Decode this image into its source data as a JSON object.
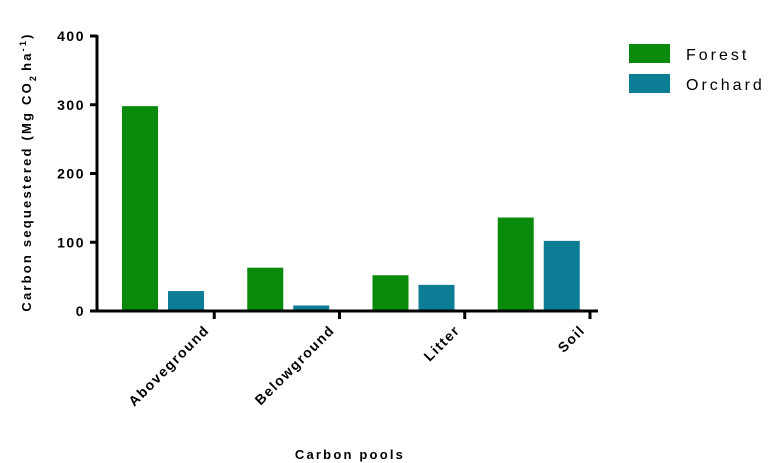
{
  "chart_data": {
    "type": "bar",
    "categories": [
      "Aboveground",
      "Belowground",
      "Litter",
      "Soil"
    ],
    "series": [
      {
        "name": "Forest",
        "color": "#0a8a0a",
        "values": [
          298,
          63,
          52,
          136
        ]
      },
      {
        "name": "Orchard",
        "color": "#0b7e96",
        "values": [
          29,
          8,
          38,
          102
        ]
      }
    ],
    "ylim": [
      0,
      400
    ],
    "yticks": [
      0,
      100,
      200,
      300,
      400
    ],
    "xlabel": "Carbon pools",
    "ylabel_parts": [
      "Carbon sequestered (Mg CO",
      "2",
      "ha",
      "-1",
      ")"
    ],
    "grid": false,
    "legend_position": "top-right"
  }
}
